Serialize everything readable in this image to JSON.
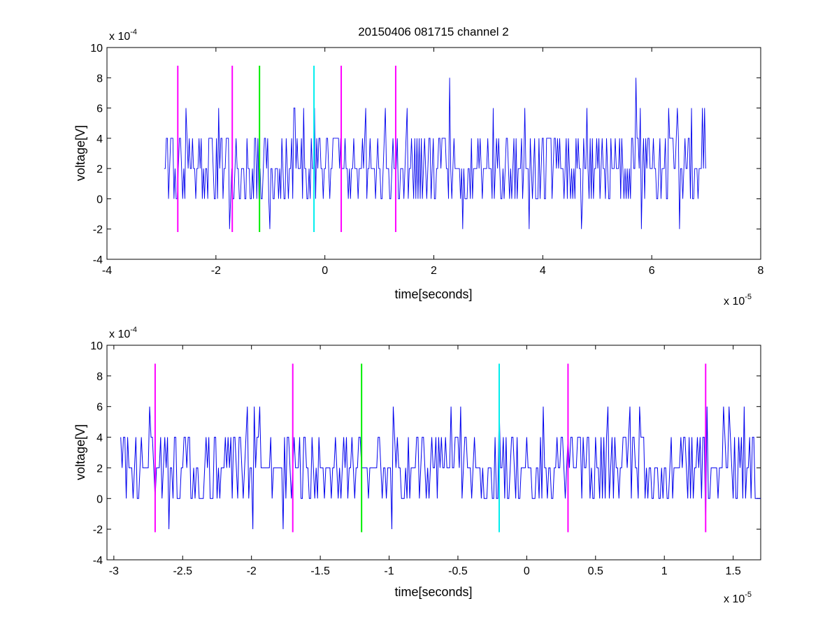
{
  "figure_title": "20150406 081715 channel 2",
  "colors": {
    "signal": "#0000ee",
    "magenta": "#ff00ff",
    "green": "#00ee00",
    "cyan": "#00eeee",
    "axes": "#000000"
  },
  "chart_data": [
    {
      "type": "line",
      "title": "20150406 081715 channel 2",
      "xlabel": "time[seconds]",
      "ylabel": "voltage[V]",
      "x_exponent_label": "x 10",
      "x_exponent": "-5",
      "y_exponent_label": "x 10",
      "y_exponent": "-4",
      "xlim": [
        -4,
        8
      ],
      "ylim": [
        -4,
        10
      ],
      "x_ticks": [
        -4,
        -2,
        0,
        2,
        4,
        6,
        8
      ],
      "x_tick_labels": [
        "-4",
        "-2",
        "0",
        "2",
        "4",
        "6",
        "8"
      ],
      "y_ticks": [
        -4,
        -2,
        0,
        2,
        4,
        6,
        8,
        10
      ],
      "y_tick_labels": [
        "-4",
        "-2",
        "0",
        "2",
        "4",
        "6",
        "8",
        "10"
      ],
      "grid": false,
      "signal": {
        "x_range": [
          -2.95,
          7.0
        ],
        "baseline": 2,
        "levels": [
          -2,
          0,
          2,
          4,
          6,
          8
        ],
        "notable_peaks": [
          {
            "x": -1.95,
            "y": 6
          },
          {
            "x": -0.55,
            "y": 6
          },
          {
            "x": 0.75,
            "y": 6
          },
          {
            "x": 2.3,
            "y": 8
          },
          {
            "x": 3.1,
            "y": 6
          },
          {
            "x": 5.7,
            "y": 8
          },
          {
            "x": 6.45,
            "y": 6
          }
        ],
        "notable_dips": [
          {
            "x": -1.75,
            "y": -2
          },
          {
            "x": -1.0,
            "y": -2
          },
          {
            "x": 2.55,
            "y": -2
          },
          {
            "x": 3.75,
            "y": -2
          },
          {
            "x": 4.7,
            "y": -2
          },
          {
            "x": 5.8,
            "y": -2
          },
          {
            "x": 6.5,
            "y": -2
          }
        ]
      },
      "markers": [
        {
          "x": -2.7,
          "y_range": [
            -2.2,
            8.8
          ],
          "color": "magenta"
        },
        {
          "x": -1.7,
          "y_range": [
            -2.2,
            8.8
          ],
          "color": "magenta"
        },
        {
          "x": -1.2,
          "y_range": [
            -2.2,
            8.8
          ],
          "color": "green"
        },
        {
          "x": -0.2,
          "y_range": [
            -2.2,
            8.8
          ],
          "color": "cyan"
        },
        {
          "x": 0.3,
          "y_range": [
            -2.2,
            8.8
          ],
          "color": "magenta"
        },
        {
          "x": 1.3,
          "y_range": [
            -2.2,
            8.8
          ],
          "color": "magenta"
        }
      ]
    },
    {
      "type": "line",
      "xlabel": "time[seconds]",
      "ylabel": "voltage[V]",
      "x_exponent_label": "x 10",
      "x_exponent": "-5",
      "y_exponent_label": "x 10",
      "y_exponent": "-4",
      "xlim": [
        -3.05,
        1.7
      ],
      "ylim": [
        -4,
        10
      ],
      "x_ticks": [
        -3,
        -2.5,
        -2,
        -1.5,
        -1,
        -0.5,
        0,
        0.5,
        1,
        1.5
      ],
      "x_tick_labels": [
        "-3",
        "-2.5",
        "-2",
        "-1.5",
        "-1",
        "-0.5",
        "0",
        "0.5",
        "1",
        "1.5"
      ],
      "y_ticks": [
        -4,
        -2,
        0,
        2,
        4,
        6,
        8,
        10
      ],
      "y_tick_labels": [
        "-4",
        "-2",
        "0",
        "2",
        "4",
        "6",
        "8",
        "10"
      ],
      "grid": false,
      "signal": {
        "x_range": [
          -2.95,
          1.7
        ],
        "baseline": 2,
        "levels": [
          -2,
          0,
          2,
          4,
          6
        ],
        "notable_peaks": [
          {
            "x": -1.98,
            "y": 6
          },
          {
            "x": -0.55,
            "y": 6
          },
          {
            "x": -0.2,
            "y": 6
          },
          {
            "x": 0.75,
            "y": 6
          },
          {
            "x": 1.31,
            "y": 6
          }
        ],
        "notable_dips": [
          {
            "x": -2.6,
            "y": -2
          },
          {
            "x": -1.99,
            "y": -2
          },
          {
            "x": -1.77,
            "y": -2
          },
          {
            "x": -0.98,
            "y": -2
          },
          {
            "x": 1.3,
            "y": -2
          }
        ]
      },
      "markers": [
        {
          "x": -2.7,
          "y_range": [
            -2.2,
            8.8
          ],
          "color": "magenta"
        },
        {
          "x": -1.7,
          "y_range": [
            -2.2,
            8.8
          ],
          "color": "magenta"
        },
        {
          "x": -1.2,
          "y_range": [
            -2.2,
            8.8
          ],
          "color": "green"
        },
        {
          "x": -0.2,
          "y_range": [
            -2.2,
            8.8
          ],
          "color": "cyan"
        },
        {
          "x": 0.3,
          "y_range": [
            -2.2,
            8.8
          ],
          "color": "magenta"
        },
        {
          "x": 1.3,
          "y_range": [
            -2.2,
            8.8
          ],
          "color": "magenta"
        }
      ]
    }
  ]
}
